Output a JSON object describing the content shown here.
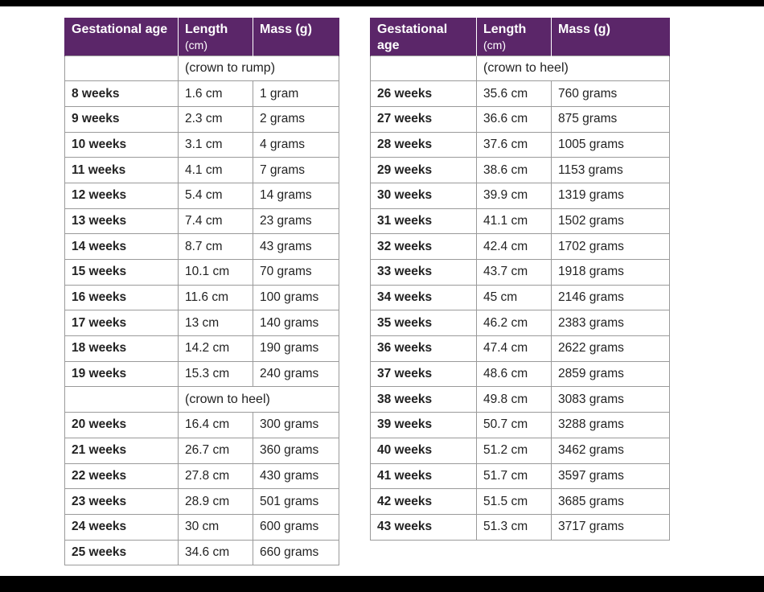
{
  "headers": {
    "age": "Gestational age",
    "length": "Length",
    "length_unit": "(cm)",
    "mass": "Mass (g)"
  },
  "left_table": {
    "rows": [
      {
        "section": "(crown to rump)"
      },
      {
        "age": "8 weeks",
        "length": "1.6 cm",
        "mass": "1 gram"
      },
      {
        "age": "9 weeks",
        "length": "2.3 cm",
        "mass": "2 grams"
      },
      {
        "age": "10 weeks",
        "length": "3.1 cm",
        "mass": "4 grams"
      },
      {
        "age": "11 weeks",
        "length": "4.1 cm",
        "mass": "7 grams"
      },
      {
        "age": "12 weeks",
        "length": "5.4 cm",
        "mass": "14 grams"
      },
      {
        "age": "13 weeks",
        "length": "7.4 cm",
        "mass": "23 grams"
      },
      {
        "age": "14 weeks",
        "length": "8.7 cm",
        "mass": "43 grams"
      },
      {
        "age": "15 weeks",
        "length": "10.1 cm",
        "mass": "70 grams"
      },
      {
        "age": "16 weeks",
        "length": "11.6 cm",
        "mass": "100 grams"
      },
      {
        "age": "17 weeks",
        "length": "13 cm",
        "mass": "140 grams"
      },
      {
        "age": "18 weeks",
        "length": "14.2 cm",
        "mass": "190 grams"
      },
      {
        "age": "19 weeks",
        "length": "15.3 cm",
        "mass": "240 grams"
      },
      {
        "section": "(crown to heel)"
      },
      {
        "age": "20 weeks",
        "length": "16.4 cm",
        "mass": "300 grams"
      },
      {
        "age": "21 weeks",
        "length": "26.7 cm",
        "mass": "360 grams"
      },
      {
        "age": "22 weeks",
        "length": "27.8 cm",
        "mass": "430 grams"
      },
      {
        "age": "23 weeks",
        "length": "28.9 cm",
        "mass": "501 grams"
      },
      {
        "age": "24 weeks",
        "length": "30 cm",
        "mass": "600 grams"
      },
      {
        "age": "25 weeks",
        "length": "34.6 cm",
        "mass": "660 grams"
      }
    ]
  },
  "right_table": {
    "rows": [
      {
        "section": "(crown to heel)"
      },
      {
        "age": "26 weeks",
        "length": "35.6 cm",
        "mass": "760 grams"
      },
      {
        "age": "27 weeks",
        "length": "36.6 cm",
        "mass": "875 grams"
      },
      {
        "age": "28 weeks",
        "length": "37.6 cm",
        "mass": "1005 grams"
      },
      {
        "age": "29 weeks",
        "length": "38.6 cm",
        "mass": "1153 grams"
      },
      {
        "age": "30 weeks",
        "length": "39.9 cm",
        "mass": "1319 grams"
      },
      {
        "age": "31 weeks",
        "length": "41.1 cm",
        "mass": "1502 grams"
      },
      {
        "age": "32 weeks",
        "length": "42.4 cm",
        "mass": "1702 grams"
      },
      {
        "age": "33 weeks",
        "length": "43.7 cm",
        "mass": "1918 grams"
      },
      {
        "age": "34 weeks",
        "length": "45 cm",
        "mass": "2146 grams"
      },
      {
        "age": "35 weeks",
        "length": "46.2 cm",
        "mass": "2383 grams"
      },
      {
        "age": "36 weeks",
        "length": "47.4 cm",
        "mass": "2622 grams"
      },
      {
        "age": "37 weeks",
        "length": "48.6 cm",
        "mass": "2859 grams"
      },
      {
        "age": "38 weeks",
        "length": "49.8 cm",
        "mass": "3083 grams"
      },
      {
        "age": "39 weeks",
        "length": "50.7 cm",
        "mass": "3288 grams"
      },
      {
        "age": "40 weeks",
        "length": "51.2 cm",
        "mass": "3462 grams"
      },
      {
        "age": "41 weeks",
        "length": "51.7 cm",
        "mass": "3597 grams"
      },
      {
        "age": "42 weeks",
        "length": "51.5 cm",
        "mass": "3685 grams"
      },
      {
        "age": "43 weeks",
        "length": "51.3 cm",
        "mass": "3717 grams"
      }
    ]
  },
  "colors": {
    "header_bg": "#5b2669",
    "header_text": "#ffffff",
    "grid": "#9a9a9a",
    "frame": "#000000"
  }
}
